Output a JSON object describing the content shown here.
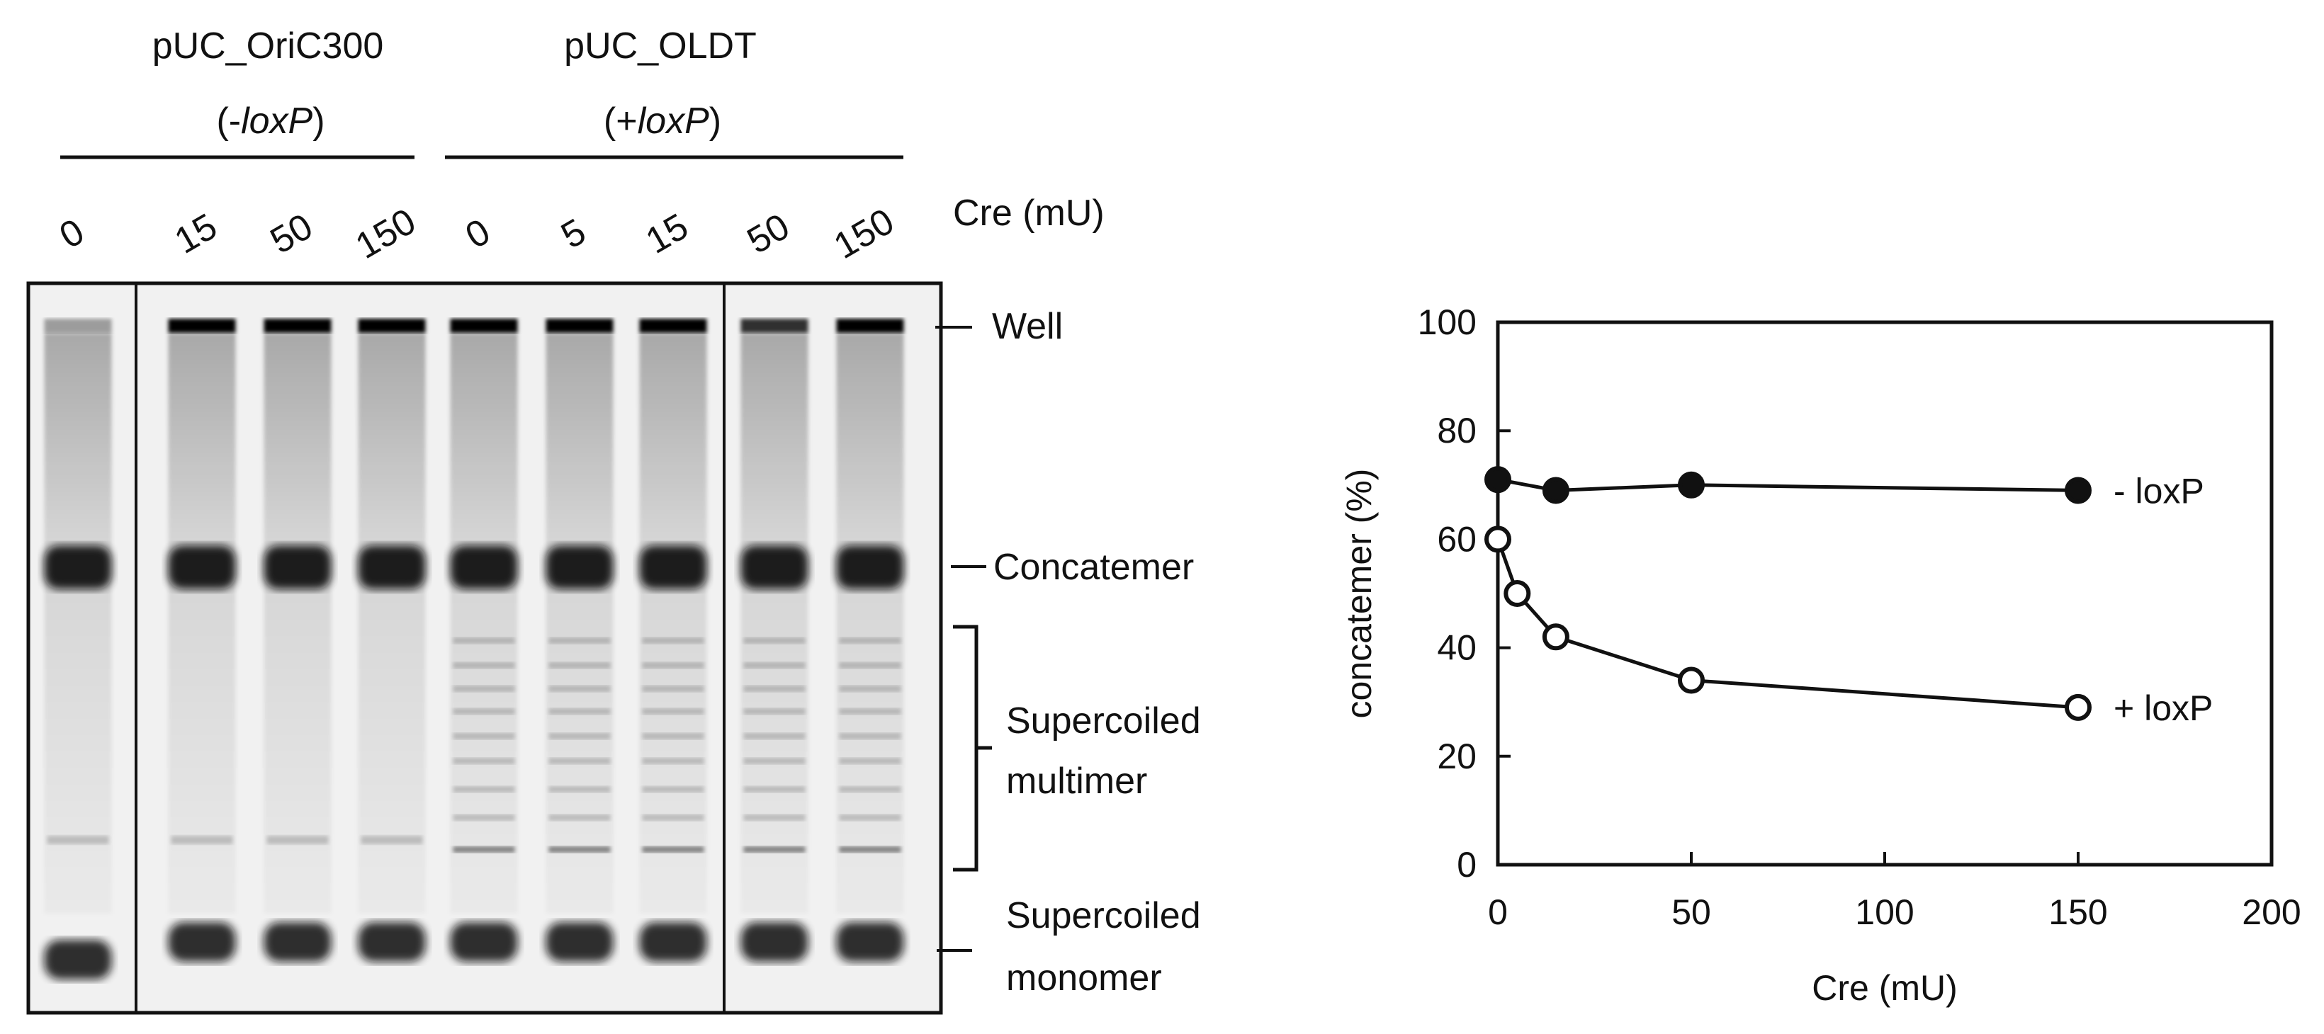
{
  "gel": {
    "groups": [
      {
        "name": "pUC_OriC300",
        "marker_prefix": "(-",
        "marker_italic": "loxP",
        "marker_suffix": ")"
      },
      {
        "name": "pUC_OLDT",
        "marker_prefix": "(+",
        "marker_italic": "loxP",
        "marker_suffix": ")"
      }
    ],
    "lane_labels": [
      "0",
      "15",
      "50",
      "150",
      "0",
      "5",
      "15",
      "50",
      "150"
    ],
    "axis_label": "Cre (mU)",
    "band_labels": {
      "well": "Well",
      "concatemer": "Concatemer",
      "multimer_line1": "Supercoiled",
      "multimer_line2": "multimer",
      "monomer_line1": "Supercoiled",
      "monomer_line2": "monomer"
    }
  },
  "chart_data": {
    "type": "scatter",
    "xlabel": "Cre (mU)",
    "ylabel": "concatemer (%)",
    "xlim": [
      0,
      200
    ],
    "ylim": [
      0,
      100
    ],
    "xticks": [
      0,
      50,
      100,
      150,
      200
    ],
    "yticks": [
      0,
      20,
      40,
      60,
      80,
      100
    ],
    "grid": false,
    "series": [
      {
        "name": "- loxP",
        "marker": "filled-circle",
        "x": [
          0,
          15,
          50,
          150
        ],
        "y": [
          71,
          69,
          70,
          69
        ]
      },
      {
        "name": "+ loxP",
        "marker": "open-circle",
        "x": [
          0,
          5,
          15,
          50,
          150
        ],
        "y": [
          60,
          50,
          42,
          34,
          29
        ]
      }
    ]
  }
}
